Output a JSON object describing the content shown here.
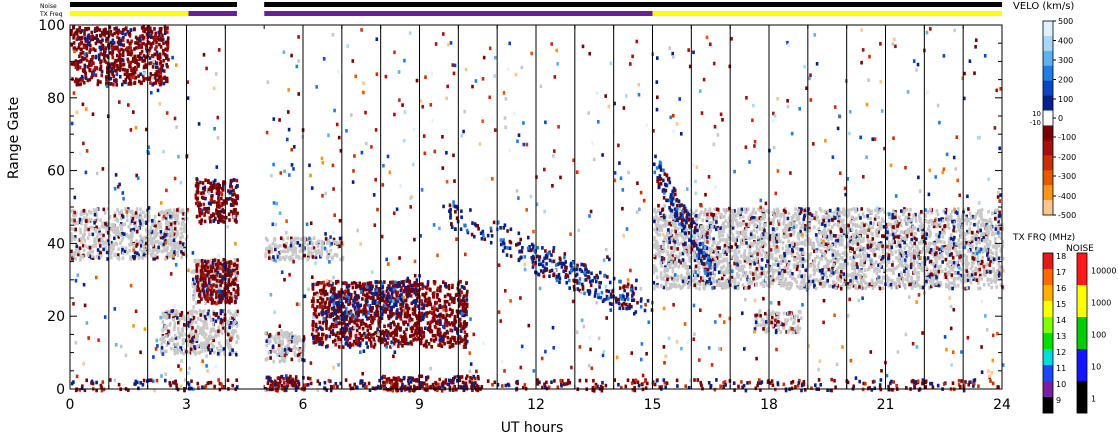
{
  "chart_data": {
    "type": "heatmap",
    "xlabel": "UT hours",
    "ylabel": "Range Gate",
    "xlim": [
      0,
      24
    ],
    "ylim": [
      0,
      100
    ],
    "xticks": [
      "0",
      "3",
      "6",
      "9",
      "12",
      "15",
      "18",
      "21",
      "24"
    ],
    "yticks": [
      "0",
      "20",
      "40",
      "60",
      "80",
      "100"
    ],
    "top_strips": {
      "noise_label": "Noise",
      "txfreq_label": "TX Freq",
      "segments": [
        {
          "start": 0,
          "end": 3.05,
          "color": "#ffff00"
        },
        {
          "start": 3.05,
          "end": 4.3,
          "color": "#6a1f9a"
        },
        {
          "start": 5.0,
          "end": 15.0,
          "color": "#6a1f9a"
        },
        {
          "start": 15.0,
          "end": 24,
          "color": "#ffff00"
        }
      ]
    },
    "velo_scale": {
      "title": "VELO (km/s)",
      "ticks": [
        "500",
        "400",
        "300",
        "200",
        "100",
        "0",
        "-100",
        "-200",
        "-300",
        "-400",
        "-500"
      ],
      "small_ticks": [
        "10",
        "-10"
      ],
      "colors": [
        "#dff2ff",
        "#a8d8f8",
        "#5cb2ee",
        "#1f7fe0",
        "#0a47c8",
        "#06218a",
        "#ffffff",
        "#7a0000",
        "#a80f0f",
        "#c93005",
        "#e45a00",
        "#f7941d",
        "#ffc58a"
      ]
    },
    "txfrq_scale": {
      "title": "TX FRQ (MHz)",
      "ticks": [
        "18",
        "17",
        "16",
        "15",
        "14",
        "13",
        "12",
        "11",
        "10",
        "9"
      ],
      "colors": [
        "#e21a1a",
        "#ff6a00",
        "#ffb000",
        "#ffff00",
        "#7fff00",
        "#00e000",
        "#00dada",
        "#1e46ff",
        "#7a1fa2",
        "#000000"
      ]
    },
    "noise_scale": {
      "title": "NOISE",
      "ticks": [
        "10000",
        "1000",
        "100",
        "10",
        "1"
      ],
      "colors": [
        "#ff1a1a",
        "#ffff00",
        "#00cc00",
        "#1414ff",
        "#000000"
      ]
    },
    "data_gaps_hours": [
      [
        4.3,
        5.0
      ]
    ],
    "scatter_bands": [
      {
        "t0": 0,
        "t1": 3.0,
        "g0": 36,
        "g1": 50,
        "type": "ground"
      },
      {
        "t0": 3.1,
        "t1": 4.3,
        "g0": 24,
        "g1": 36,
        "type": "ground"
      },
      {
        "t0": 2.3,
        "t1": 4.3,
        "g0": 10,
        "g1": 22,
        "type": "ground"
      },
      {
        "t0": 5.0,
        "t1": 7.0,
        "g0": 36,
        "g1": 42,
        "type": "ground"
      },
      {
        "t0": 5.0,
        "t1": 6.0,
        "g0": 8,
        "g1": 16,
        "type": "ground"
      },
      {
        "t0": 15.0,
        "t1": 24,
        "g0": 28,
        "g1": 50,
        "type": "ground"
      },
      {
        "t0": 17.6,
        "t1": 18.8,
        "g0": 16,
        "g1": 22,
        "type": "ground"
      },
      {
        "t0": 6.2,
        "t1": 10.2,
        "g0": 12,
        "g1": 30,
        "type": "negative"
      },
      {
        "t0": 3.2,
        "t1": 4.3,
        "g0": 46,
        "g1": 58,
        "type": "negative"
      },
      {
        "t0": 3.2,
        "t1": 4.3,
        "g0": 24,
        "g1": 36,
        "type": "negative"
      },
      {
        "t0": 8.0,
        "t1": 10.5,
        "g0": 0,
        "g1": 4,
        "type": "negative"
      },
      {
        "t0": 5.0,
        "t1": 6.2,
        "g0": 0,
        "g1": 4,
        "type": "negative"
      },
      {
        "t0": 0,
        "t1": 2.5,
        "g0": 84,
        "g1": 100,
        "type": "negative"
      }
    ]
  }
}
